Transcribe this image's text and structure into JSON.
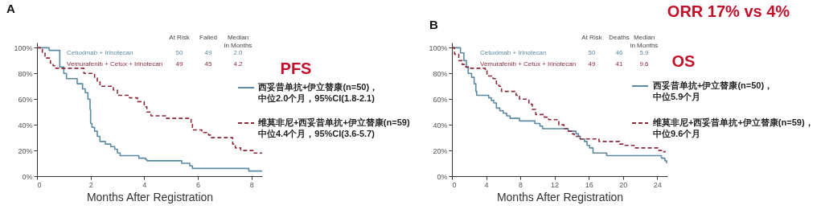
{
  "chart_data": [
    {
      "type": "step",
      "title": "A",
      "legend_title": "PFS",
      "xlabel": "Months After Registration",
      "xlim": [
        0,
        8.4
      ],
      "xticks": [
        0,
        2,
        4,
        6,
        8
      ],
      "ylim": [
        0,
        104
      ],
      "yticks": [
        {
          "value": 0,
          "label": "0%"
        },
        {
          "value": 20,
          "label": "20%"
        },
        {
          "value": 40,
          "label": "40%"
        },
        {
          "value": 60,
          "label": "60%"
        },
        {
          "value": 80,
          "label": "80%"
        },
        {
          "value": 100,
          "label": "100%"
        }
      ],
      "legend": "right",
      "annotations": [
        "At Risk",
        "Failed",
        "Median\nin Months",
        "Cetuximab + Irinotecan",
        "50",
        "49",
        "2.0",
        "Vemurafenib + Cetux + Irinotecan",
        "49",
        "45",
        "4.2"
      ],
      "series": [
        {
          "name": "西妥昔单抗+伊立替康(n=50)，中位2.0个月，95%CI(1.8-2.1)",
          "color": "#5b8ba3",
          "line_style": "solid",
          "x": [
            0,
            0.45,
            0.85,
            1.0,
            1.1,
            1.15,
            1.5,
            1.7,
            1.8,
            1.9,
            1.98,
            2.0,
            2.05,
            2.15,
            2.25,
            2.35,
            2.55,
            2.75,
            2.9,
            3.0,
            3.1,
            3.8,
            4.05,
            4.1,
            5.4,
            5.7,
            5.8,
            7.9,
            8.4
          ],
          "values": [
            100,
            98,
            85,
            80,
            76,
            76,
            72,
            68,
            65,
            60,
            52,
            41,
            38,
            35,
            31,
            27,
            25,
            23,
            21,
            18,
            16,
            14,
            13,
            12,
            10,
            8,
            6,
            4,
            4
          ]
        },
        {
          "name": "维莫非尼+西妥昔单抗+伊立替康(n=59)中位4.4个月，95%CI(3.6-5.7)",
          "color": "#8b2a3a",
          "line_style": "dashed",
          "x": [
            0,
            0.2,
            0.3,
            0.5,
            0.6,
            0.7,
            1.75,
            2.15,
            2.25,
            2.35,
            2.85,
            3.0,
            3.45,
            3.75,
            4.0,
            4.1,
            4.25,
            4.8,
            5.75,
            5.8,
            6.15,
            6.4,
            6.5,
            7.3,
            7.4,
            7.6,
            8.1,
            8.4
          ],
          "values": [
            100,
            96,
            92,
            88,
            86,
            84,
            80,
            77,
            74,
            70,
            67,
            63,
            61,
            58,
            54,
            50,
            47,
            45,
            41,
            36,
            34,
            32,
            30,
            25,
            22,
            20,
            18,
            18
          ]
        }
      ]
    },
    {
      "type": "step",
      "title": "B",
      "legend_title": "OS",
      "xlabel": "Months After Registration",
      "xlim": [
        0,
        25.2
      ],
      "xticks": [
        0,
        4,
        8,
        12,
        16,
        20,
        24
      ],
      "ylim": [
        0,
        104
      ],
      "yticks": [
        {
          "value": 0,
          "label": "0%"
        },
        {
          "value": 20,
          "label": "20%"
        },
        {
          "value": 40,
          "label": "40%"
        },
        {
          "value": 60,
          "label": "60%"
        },
        {
          "value": 80,
          "label": "80%"
        },
        {
          "value": 100,
          "label": "100%"
        }
      ],
      "legend": "right",
      "annotations": [
        "At Risk",
        "Deaths",
        "Median\nin Months",
        "Cetuximab + Irinotecan",
        "50",
        "46",
        "5.9",
        "Vemurafenib + Cetux + Irinotecan",
        "49",
        "41",
        "9.6",
        "ORR  17% vs 4%"
      ],
      "series": [
        {
          "name": "西妥昔单抗+伊立替康(n=50)，中位5.9个月",
          "color": "#5b8ba3",
          "line_style": "solid",
          "x": [
            0,
            1.0,
            1.4,
            1.7,
            1.9,
            2.3,
            2.6,
            2.8,
            2.9,
            4.3,
            4.6,
            4.9,
            5.2,
            5.6,
            6.0,
            6.4,
            6.8,
            7.9,
            9.7,
            10.3,
            10.6,
            13.6,
            14.5,
            14.8,
            15.0,
            15.5,
            15.8,
            16.1,
            16.5,
            18.1,
            24.5,
            24.9,
            25.1
          ],
          "values": [
            100,
            96,
            90,
            85,
            80,
            77,
            72,
            66,
            63,
            61,
            59,
            57,
            53,
            51,
            49,
            47,
            45,
            43,
            41,
            39,
            37,
            35,
            33,
            31,
            29,
            27,
            24,
            22,
            18,
            16,
            14,
            12,
            10
          ]
        },
        {
          "name": "维莫非尼+西妥昔单抗+伊立替康(n=59)，中位9.6个月",
          "color": "#8b2a3a",
          "line_style": "dashed",
          "x": [
            0,
            0.3,
            0.8,
            1.2,
            1.6,
            2.1,
            3.9,
            4.1,
            4.8,
            5.2,
            5.5,
            5.8,
            7.5,
            7.9,
            9.0,
            9.4,
            9.8,
            10.8,
            11.3,
            12.5,
            13.1,
            13.6,
            14.0,
            14.3,
            15.0,
            17.2,
            19.6,
            20.1,
            21.3,
            24.2,
            24.6,
            25.0
          ],
          "values": [
            100,
            95,
            90,
            87,
            85,
            84,
            82,
            78,
            76,
            72,
            70,
            66,
            63,
            60,
            56,
            52,
            48,
            46,
            44,
            40,
            37,
            35,
            33,
            31,
            29,
            27,
            25,
            24,
            22,
            20,
            19,
            19
          ]
        }
      ]
    }
  ]
}
